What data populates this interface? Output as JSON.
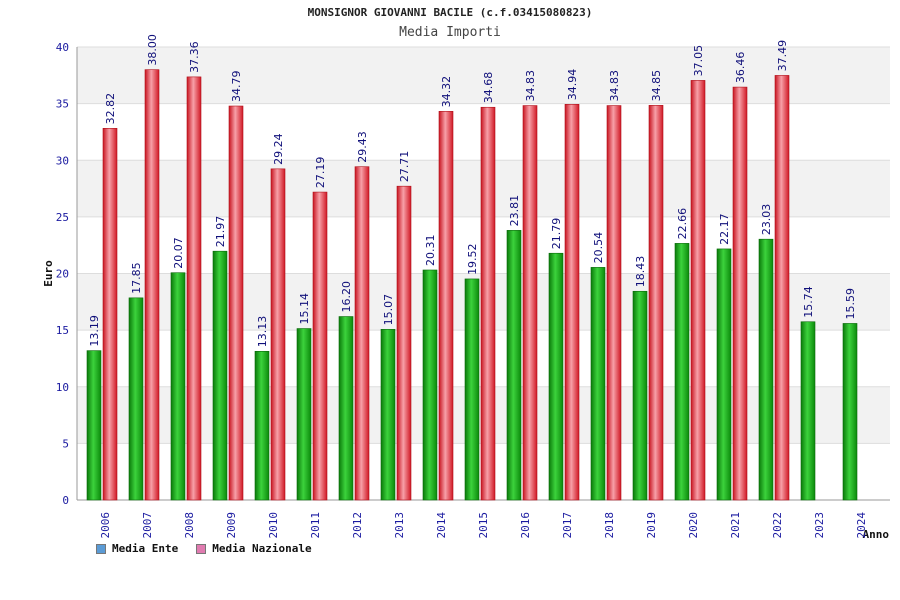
{
  "chart_data": {
    "type": "bar",
    "title": "MONSIGNOR GIOVANNI BACILE (c.f.03415080823)",
    "subtitle": "Media Importi",
    "ylabel": "Euro",
    "xlabel": "Anno",
    "ylim": [
      0,
      40
    ],
    "yticks": [
      "0",
      "5",
      "10",
      "15",
      "20",
      "25",
      "30",
      "35",
      "40"
    ],
    "grid": true,
    "legend_position": "bottom-left",
    "categories": [
      "2006",
      "2007",
      "2008",
      "2009",
      "2010",
      "2011",
      "2012",
      "2013",
      "2014",
      "2015",
      "2016",
      "2017",
      "2018",
      "2019",
      "2020",
      "2021",
      "2022",
      "2023",
      "2024"
    ],
    "series": [
      {
        "name": "Media Ente",
        "color": "#1aa61a",
        "legend_color": "#5b9bd5",
        "values": [
          13.19,
          17.85,
          20.07,
          21.97,
          13.13,
          15.14,
          16.2,
          15.07,
          20.31,
          19.52,
          23.81,
          21.79,
          20.54,
          18.43,
          22.66,
          22.17,
          23.03,
          15.74,
          15.59
        ],
        "labels": [
          "13.19",
          "17.85",
          "20.07",
          "21.97",
          "13.13",
          "15.14",
          "16.20",
          "15.07",
          "20.31",
          "19.52",
          "23.81",
          "21.79",
          "20.54",
          "18.43",
          "22.66",
          "22.17",
          "23.03",
          "15.74",
          "15.59"
        ]
      },
      {
        "name": "Media Nazionale",
        "color": "#e8303a",
        "legend_color": "#e07bb0",
        "values": [
          32.82,
          38.0,
          37.36,
          34.79,
          29.24,
          27.19,
          29.43,
          27.71,
          34.32,
          34.68,
          34.83,
          34.94,
          34.83,
          34.85,
          37.05,
          36.46,
          37.49,
          null,
          null
        ],
        "labels": [
          "32.82",
          "38.00",
          "37.36",
          "34.79",
          "29.24",
          "27.19",
          "29.43",
          "27.71",
          "34.32",
          "34.68",
          "34.83",
          "34.94",
          "34.83",
          "34.85",
          "37.05",
          "36.46",
          "37.49",
          "",
          ""
        ]
      }
    ]
  }
}
